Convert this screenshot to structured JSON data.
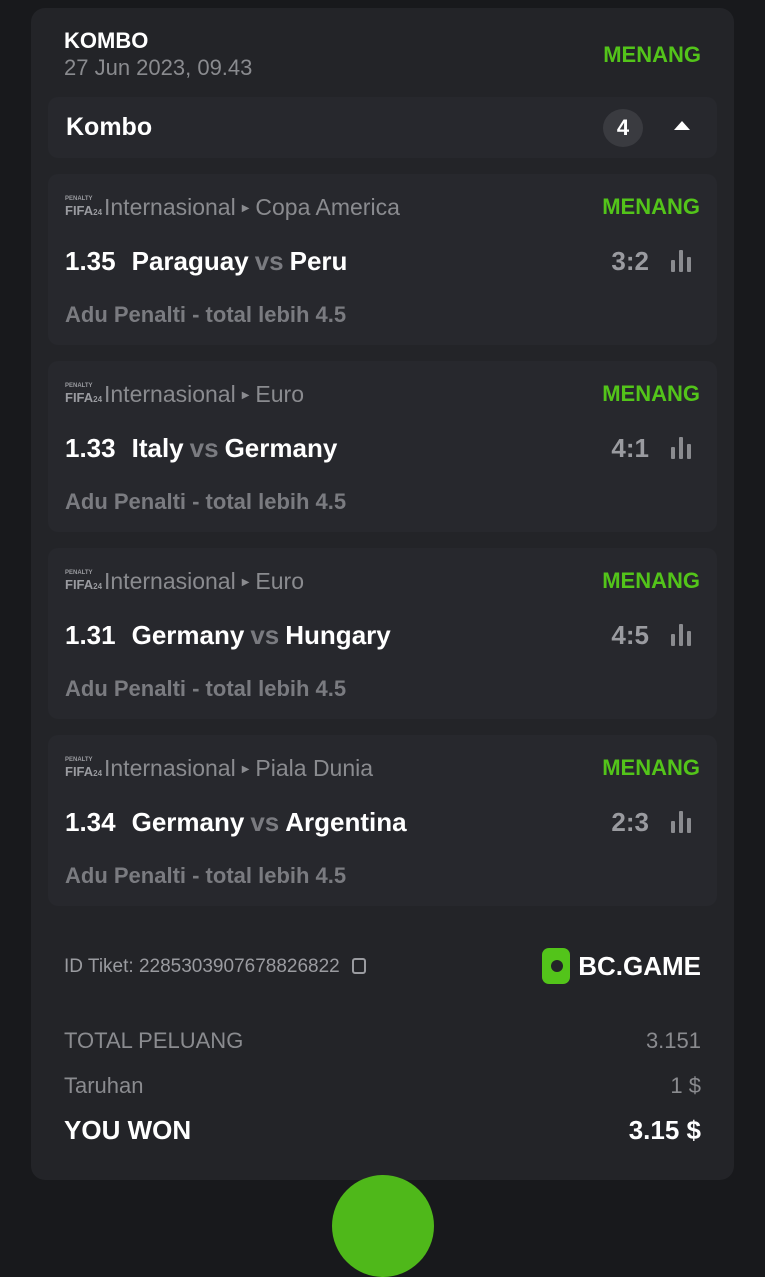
{
  "header": {
    "title": "KOMBO",
    "date": "27 Jun 2023, 09.43",
    "status": "MENANG"
  },
  "kombo": {
    "label": "Kombo",
    "count": "4"
  },
  "matches": [
    {
      "category": "Internasional",
      "league": "Copa America",
      "status": "MENANG",
      "odds": "1.35",
      "home": "Paraguay",
      "vs": "vs",
      "away": "Peru",
      "score": "3:2",
      "market": "Adu Penalti - total lebih 4.5"
    },
    {
      "category": "Internasional",
      "league": "Euro",
      "status": "MENANG",
      "odds": "1.33",
      "home": "Italy",
      "vs": "vs",
      "away": "Germany",
      "score": "4:1",
      "market": "Adu Penalti - total lebih 4.5"
    },
    {
      "category": "Internasional",
      "league": "Euro",
      "status": "MENANG",
      "odds": "1.31",
      "home": "Germany",
      "vs": "vs",
      "away": "Hungary",
      "score": "4:5",
      "market": "Adu Penalti - total lebih 4.5"
    },
    {
      "category": "Internasional",
      "league": "Piala Dunia",
      "status": "MENANG",
      "odds": "1.34",
      "home": "Germany",
      "vs": "vs",
      "away": "Argentina",
      "score": "2:3",
      "market": "Adu Penalti - total lebih 4.5"
    }
  ],
  "game_logo": {
    "top": "PENALTY",
    "main": "FIFA",
    "sub": "24"
  },
  "ticket": {
    "label": "ID Tiket: 2285303907678826822"
  },
  "brand": {
    "name": "BC.GAME",
    "color": "#53c41a"
  },
  "summary": {
    "total_label": "TOTAL PELUANG",
    "total_value": "3.151",
    "stake_label": "Taruhan",
    "stake_value": "1 $",
    "won_label": "YOU WON",
    "won_value": "3.15 $"
  }
}
